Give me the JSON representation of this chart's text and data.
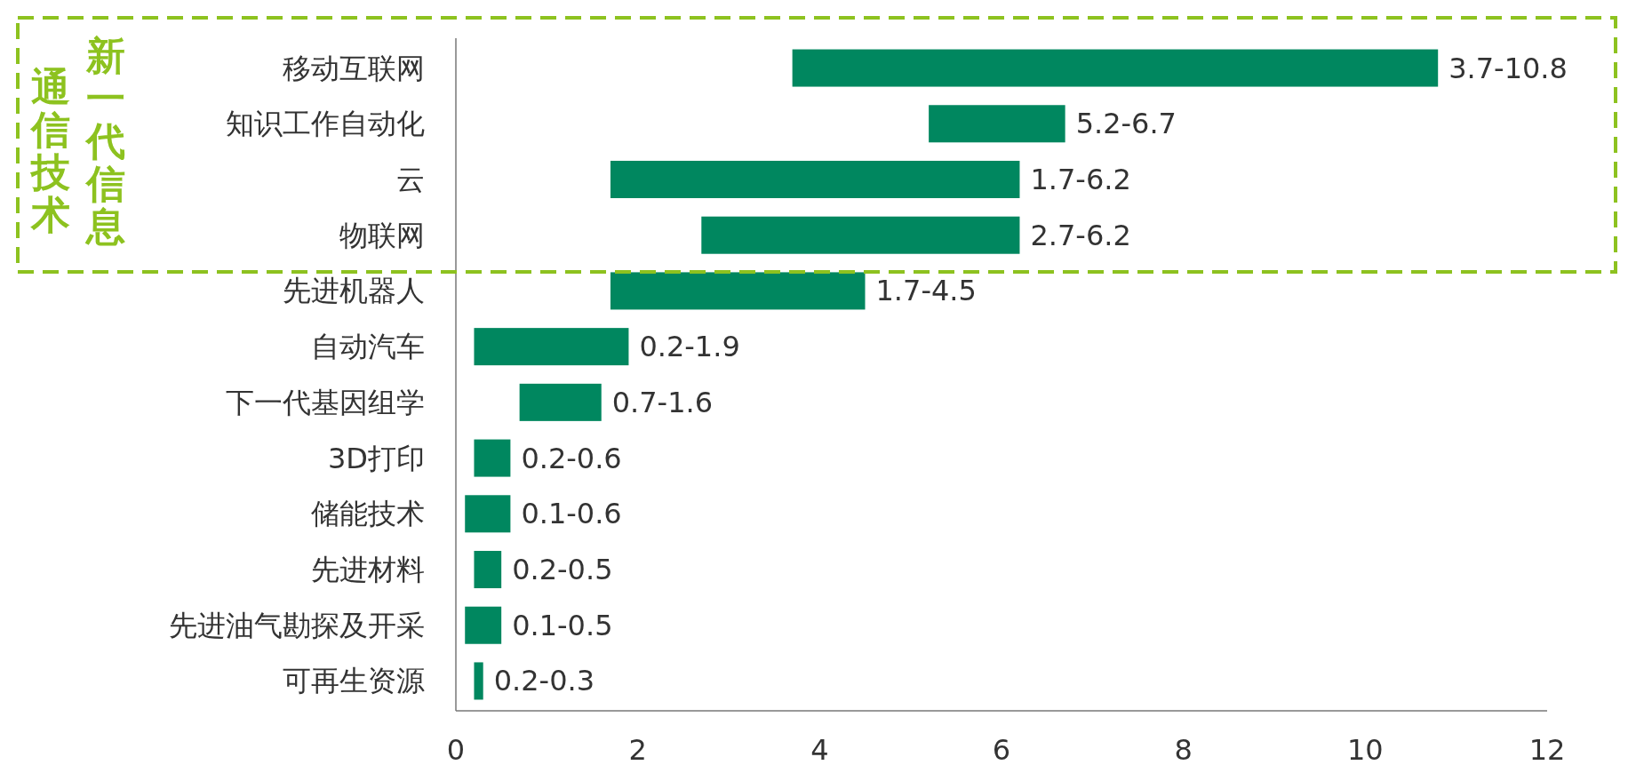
{
  "chart_data": {
    "type": "bar",
    "orientation": "horizontal",
    "categories": [
      "移动互联网",
      "知识工作自动化",
      "云",
      "物联网",
      "先进机器人",
      "自动汽车",
      "下一代基因组学",
      "3D打印",
      "储能技术",
      "先进材料",
      "先进油气勘探及开采",
      "可再生资源"
    ],
    "base": [
      3.7,
      5.2,
      1.7,
      2.7,
      1.7,
      0.2,
      0.7,
      0.2,
      0.1,
      0.2,
      0.1,
      0.2
    ],
    "values": [
      7.1,
      1.5,
      4.5,
      3.5,
      2.8,
      1.7,
      0.9,
      0.4,
      0.5,
      0.3,
      0.4,
      0.1
    ],
    "value_labels": [
      "3.7-10.8",
      "5.2-6.7",
      "1.7-6.2",
      "2.7-6.2",
      "1.7-4.5",
      "0.2-1.9",
      "0.7-1.6",
      "0.2-0.6",
      "0.1-0.6",
      "0.2-0.5",
      "0.1-0.5",
      "0.2-0.3"
    ],
    "color": "#00875f",
    "xlim": [
      0,
      12
    ],
    "xticks": [
      0,
      2,
      4,
      6,
      8,
      10,
      12
    ],
    "annotations": [
      "新一代信息通信技术"
    ]
  }
}
